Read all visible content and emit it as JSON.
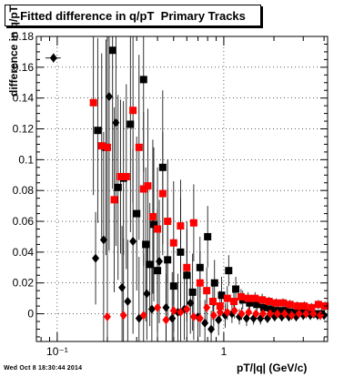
{
  "chart_data": {
    "type": "scatter",
    "title": "Fitted difference in q/pT  Primary Tracks",
    "ylabel": "difference in q/pT",
    "xlabel": "pT/|q| (GeV/c)",
    "x_scale": "log",
    "xlim": [
      0.075,
      4.2
    ],
    "ylim": [
      -0.018,
      0.18
    ],
    "x_ticks": [
      0.1,
      1
    ],
    "x_tick_labels": [
      "10⁻¹",
      "1"
    ],
    "y_ticks": [
      0,
      0.02,
      0.04,
      0.06,
      0.08,
      0.1,
      0.12,
      0.14,
      0.16,
      0.18
    ],
    "y_tick_labels": [
      "0",
      "0.02",
      "0.04",
      "0.06",
      "0.08",
      "0.1",
      "0.12",
      "0.14",
      "0.16",
      "0.18"
    ],
    "grid": true,
    "series": [
      {
        "marker": "square",
        "color": "#000000",
        "points": [
          {
            "x": 0.175,
            "y": 0.119,
            "err": 0.06
          },
          {
            "x": 0.196,
            "y": 0.108,
            "err": 0.07
          },
          {
            "x": 0.215,
            "y": 0.171,
            "err": 0.09
          },
          {
            "x": 0.232,
            "y": 0.082,
            "err": 0.06
          },
          {
            "x": 0.25,
            "y": 0.088,
            "err": 0.05
          },
          {
            "x": 0.275,
            "y": 0.123,
            "err": 0.07
          },
          {
            "x": 0.3,
            "y": 0.065,
            "err": 0.05
          },
          {
            "x": 0.33,
            "y": 0.152,
            "err": 0.06
          },
          {
            "x": 0.34,
            "y": 0.045,
            "err": 0.05
          },
          {
            "x": 0.36,
            "y": 0.032,
            "err": 0.04
          },
          {
            "x": 0.38,
            "y": 0.058,
            "err": 0.05
          },
          {
            "x": 0.4,
            "y": 0.028,
            "err": 0.04
          },
          {
            "x": 0.43,
            "y": 0.095,
            "err": 0.05
          },
          {
            "x": 0.46,
            "y": 0.035,
            "err": 0.04
          },
          {
            "x": 0.5,
            "y": 0.018,
            "err": 0.03
          },
          {
            "x": 0.55,
            "y": 0.04,
            "err": 0.035
          },
          {
            "x": 0.6,
            "y": 0.025,
            "err": 0.03
          },
          {
            "x": 0.65,
            "y": 0.014,
            "err": 0.025
          },
          {
            "x": 0.72,
            "y": 0.03,
            "err": 0.02
          },
          {
            "x": 0.8,
            "y": 0.05,
            "err": 0.02
          },
          {
            "x": 0.88,
            "y": 0.02,
            "err": 0.015
          },
          {
            "x": 0.97,
            "y": 0.012,
            "err": 0.012
          },
          {
            "x": 1.07,
            "y": 0.028,
            "err": 0.01
          },
          {
            "x": 1.18,
            "y": 0.016,
            "err": 0.008
          },
          {
            "x": 1.3,
            "y": 0.009,
            "err": 0.006
          },
          {
            "x": 1.43,
            "y": 0.007,
            "err": 0.005
          },
          {
            "x": 1.58,
            "y": 0.006,
            "err": 0.004
          },
          {
            "x": 1.74,
            "y": 0.004,
            "err": 0.004
          },
          {
            "x": 1.92,
            "y": 0.003,
            "err": 0.003
          },
          {
            "x": 2.12,
            "y": 0.002,
            "err": 0.003
          },
          {
            "x": 2.34,
            "y": 0.002,
            "err": 0.003
          },
          {
            "x": 2.58,
            "y": 0.001,
            "err": 0.003
          },
          {
            "x": 2.85,
            "y": 0.001,
            "err": 0.003
          },
          {
            "x": 3.15,
            "y": 0.001,
            "err": 0.003
          },
          {
            "x": 3.48,
            "y": 0.0,
            "err": 0.003
          },
          {
            "x": 3.85,
            "y": 0.0,
            "err": 0.003
          }
        ]
      },
      {
        "marker": "diamond",
        "color": "#000000",
        "points": [
          {
            "x": 0.095,
            "y": 0.166,
            "err": 0.003,
            "xerr": 0.01
          },
          {
            "x": 0.17,
            "y": 0.036,
            "err": 0.03
          },
          {
            "x": 0.19,
            "y": 0.048,
            "err": 0.07
          },
          {
            "x": 0.205,
            "y": 0.141,
            "err": 0.1
          },
          {
            "x": 0.225,
            "y": 0.124,
            "err": 0.08
          },
          {
            "x": 0.245,
            "y": 0.017,
            "err": 0.04
          },
          {
            "x": 0.265,
            "y": 0.008,
            "err": 0.04
          },
          {
            "x": 0.285,
            "y": 0.047,
            "err": 0.06
          },
          {
            "x": 0.31,
            "y": -0.003,
            "err": 0.04
          },
          {
            "x": 0.345,
            "y": 0.013,
            "err": 0.03
          },
          {
            "x": 0.37,
            "y": 0.003,
            "err": 0.03
          },
          {
            "x": 0.41,
            "y": 0.034,
            "err": 0.04
          },
          {
            "x": 0.45,
            "y": 0.004,
            "err": 0.03
          },
          {
            "x": 0.49,
            "y": -0.003,
            "err": 0.03
          },
          {
            "x": 0.53,
            "y": 0.001,
            "err": 0.025
          },
          {
            "x": 0.58,
            "y": 0.003,
            "err": 0.02
          },
          {
            "x": 0.63,
            "y": 0.007,
            "err": 0.02
          },
          {
            "x": 0.7,
            "y": -0.002,
            "err": 0.02
          },
          {
            "x": 0.77,
            "y": -0.006,
            "err": 0.015
          },
          {
            "x": 0.84,
            "y": -0.01,
            "err": 0.012
          },
          {
            "x": 0.93,
            "y": -0.004,
            "err": 0.01
          },
          {
            "x": 1.02,
            "y": -0.001,
            "err": 0.008
          },
          {
            "x": 1.12,
            "y": 0.0,
            "err": 0.006
          },
          {
            "x": 1.24,
            "y": -0.002,
            "err": 0.005
          },
          {
            "x": 1.37,
            "y": -0.003,
            "err": 0.005
          },
          {
            "x": 1.51,
            "y": -0.003,
            "err": 0.004
          },
          {
            "x": 1.66,
            "y": -0.003,
            "err": 0.004
          },
          {
            "x": 1.83,
            "y": -0.003,
            "err": 0.003
          },
          {
            "x": 2.02,
            "y": -0.002,
            "err": 0.003
          },
          {
            "x": 2.23,
            "y": -0.002,
            "err": 0.003
          },
          {
            "x": 2.46,
            "y": -0.002,
            "err": 0.003
          },
          {
            "x": 2.72,
            "y": -0.002,
            "err": 0.003
          },
          {
            "x": 3.0,
            "y": -0.001,
            "err": 0.003
          },
          {
            "x": 3.31,
            "y": -0.001,
            "err": 0.003
          },
          {
            "x": 3.66,
            "y": -0.001,
            "err": 0.003
          },
          {
            "x": 4.0,
            "y": -0.001,
            "err": 0.003
          }
        ]
      },
      {
        "marker": "square",
        "color": "#ff0000",
        "points": [
          {
            "x": 0.165,
            "y": 0.137,
            "err": 0.06
          },
          {
            "x": 0.185,
            "y": 0.109,
            "err": 0.06
          },
          {
            "x": 0.2,
            "y": 0.108,
            "err": 0.07
          },
          {
            "x": 0.22,
            "y": 0.074,
            "err": 0.06
          },
          {
            "x": 0.24,
            "y": 0.089,
            "err": 0.05
          },
          {
            "x": 0.26,
            "y": 0.089,
            "err": 0.06
          },
          {
            "x": 0.285,
            "y": 0.132,
            "err": 0.06
          },
          {
            "x": 0.31,
            "y": 0.108,
            "err": 0.06
          },
          {
            "x": 0.33,
            "y": 0.081,
            "err": 0.05
          },
          {
            "x": 0.35,
            "y": 0.083,
            "err": 0.05
          },
          {
            "x": 0.375,
            "y": 0.063,
            "err": 0.05
          },
          {
            "x": 0.4,
            "y": 0.055,
            "err": 0.04
          },
          {
            "x": 0.43,
            "y": 0.078,
            "err": 0.04
          },
          {
            "x": 0.46,
            "y": 0.06,
            "err": 0.04
          },
          {
            "x": 0.5,
            "y": 0.046,
            "err": 0.04
          },
          {
            "x": 0.55,
            "y": 0.057,
            "err": 0.03
          },
          {
            "x": 0.6,
            "y": 0.03,
            "err": 0.03
          },
          {
            "x": 0.66,
            "y": 0.059,
            "err": 0.025
          },
          {
            "x": 0.72,
            "y": 0.02,
            "err": 0.02
          },
          {
            "x": 0.79,
            "y": 0.015,
            "err": 0.015
          },
          {
            "x": 0.86,
            "y": 0.008,
            "err": 0.012
          },
          {
            "x": 0.95,
            "y": 0.005,
            "err": 0.01
          },
          {
            "x": 1.05,
            "y": 0.01,
            "err": 0.008
          },
          {
            "x": 1.15,
            "y": 0.008,
            "err": 0.006
          },
          {
            "x": 1.27,
            "y": 0.011,
            "err": 0.005
          },
          {
            "x": 1.4,
            "y": 0.01,
            "err": 0.004
          },
          {
            "x": 1.54,
            "y": 0.01,
            "err": 0.004
          },
          {
            "x": 1.7,
            "y": 0.009,
            "err": 0.004
          },
          {
            "x": 1.87,
            "y": 0.008,
            "err": 0.003
          },
          {
            "x": 2.06,
            "y": 0.007,
            "err": 0.003
          },
          {
            "x": 2.27,
            "y": 0.007,
            "err": 0.003
          },
          {
            "x": 2.5,
            "y": 0.006,
            "err": 0.003
          },
          {
            "x": 2.76,
            "y": 0.005,
            "err": 0.003
          },
          {
            "x": 3.04,
            "y": 0.005,
            "err": 0.003
          },
          {
            "x": 3.36,
            "y": 0.004,
            "err": 0.003
          },
          {
            "x": 3.7,
            "y": 0.006,
            "err": 0.003
          },
          {
            "x": 4.05,
            "y": 0.005,
            "err": 0.003
          }
        ]
      },
      {
        "marker": "diamond",
        "color": "#ff0000",
        "points": [
          {
            "x": 0.2,
            "y": -0.002,
            "err": 0.04
          },
          {
            "x": 0.25,
            "y": -0.001,
            "err": 0.05
          },
          {
            "x": 0.33,
            "y": -0.001,
            "err": 0.04
          },
          {
            "x": 0.4,
            "y": 0.004,
            "err": 0.03
          },
          {
            "x": 0.45,
            "y": -0.004,
            "err": 0.03
          },
          {
            "x": 0.5,
            "y": 0.002,
            "err": 0.025
          },
          {
            "x": 0.55,
            "y": 0.001,
            "err": 0.02
          },
          {
            "x": 0.6,
            "y": 0.003,
            "err": 0.02
          },
          {
            "x": 0.66,
            "y": -0.002,
            "err": 0.015
          },
          {
            "x": 0.72,
            "y": -0.003,
            "err": 0.012
          },
          {
            "x": 0.79,
            "y": 0.004,
            "err": 0.01
          },
          {
            "x": 0.87,
            "y": -0.001,
            "err": 0.008
          },
          {
            "x": 0.95,
            "y": 0.001,
            "err": 0.006
          },
          {
            "x": 1.05,
            "y": 0.001,
            "err": 0.005
          },
          {
            "x": 1.16,
            "y": 0.002,
            "err": 0.005
          },
          {
            "x": 1.28,
            "y": 0.0,
            "err": 0.004
          },
          {
            "x": 1.41,
            "y": 0.001,
            "err": 0.004
          },
          {
            "x": 1.56,
            "y": 0.0,
            "err": 0.003
          },
          {
            "x": 1.72,
            "y": 0.0,
            "err": 0.003
          },
          {
            "x": 1.9,
            "y": 0.0,
            "err": 0.003
          },
          {
            "x": 2.1,
            "y": 0.0,
            "err": 0.003
          },
          {
            "x": 2.32,
            "y": 0.0,
            "err": 0.003
          },
          {
            "x": 2.56,
            "y": -0.001,
            "err": 0.003
          },
          {
            "x": 2.83,
            "y": 0.0,
            "err": 0.003
          },
          {
            "x": 3.12,
            "y": 0.0,
            "err": 0.003
          },
          {
            "x": 3.45,
            "y": 0.0,
            "err": 0.003
          },
          {
            "x": 3.8,
            "y": -0.001,
            "err": 0.003
          }
        ]
      }
    ]
  },
  "footer": {
    "timestamp": "Wed Oct  8 18:30:44 2014"
  }
}
